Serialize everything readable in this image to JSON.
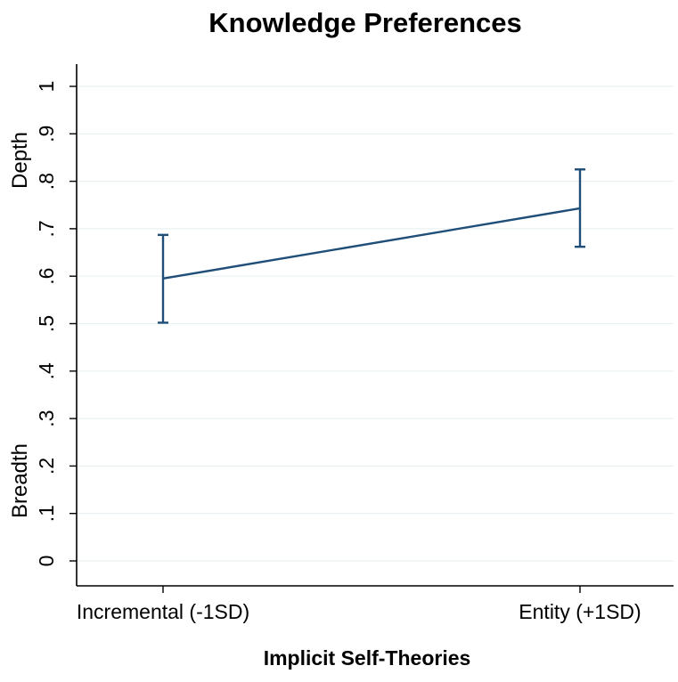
{
  "chart_data": {
    "type": "line",
    "title": "Knowledge Preferences",
    "xlabel": "Implicit Self-Theories",
    "ylabel_top": "Depth",
    "ylabel_bottom": "Breadth",
    "categories": [
      "Incremental (-1SD)",
      "Entity (+1SD)"
    ],
    "values": [
      0.595,
      0.743
    ],
    "error_low": [
      0.502,
      0.662
    ],
    "error_high": [
      0.687,
      0.825
    ],
    "ylim": [
      0,
      1
    ],
    "yticks": [
      0,
      0.1,
      0.2,
      0.3,
      0.4,
      0.5,
      0.6,
      0.7,
      0.8,
      0.9,
      1
    ],
    "ytick_labels": [
      "0",
      ".1",
      ".2",
      ".3",
      ".4",
      ".5",
      ".6",
      ".7",
      ".8",
      ".9",
      "1"
    ],
    "grid": true,
    "line_color": "#1f4e79",
    "grid_color": "#eaf0f2"
  }
}
